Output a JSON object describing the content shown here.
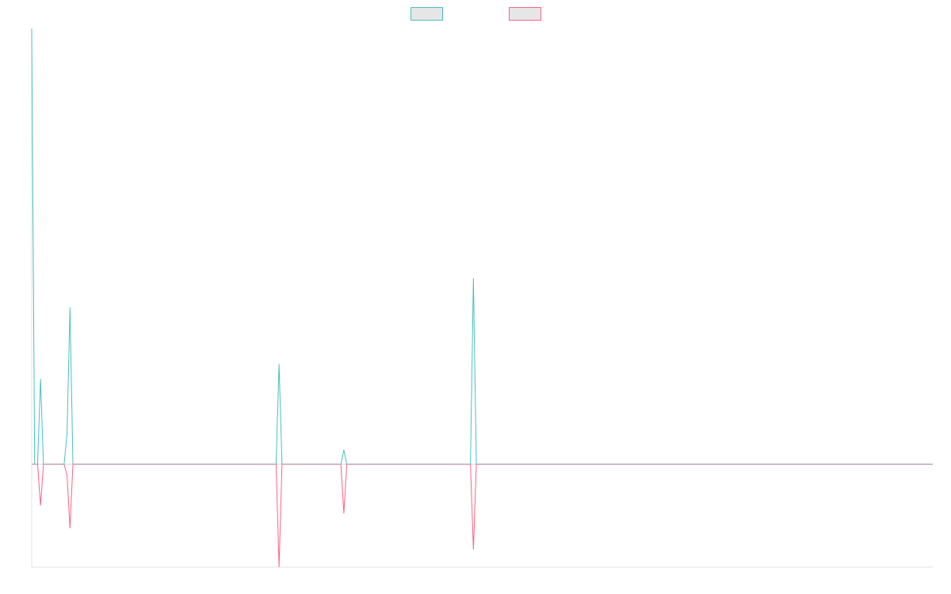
{
  "chart_data": {
    "type": "line",
    "x": [
      0,
      1,
      2,
      3,
      4,
      11,
      12,
      13,
      14,
      83,
      84,
      85,
      105,
      106,
      107,
      149,
      150,
      151,
      306
    ],
    "xlim": [
      0,
      306
    ],
    "ylim": [
      -23.6,
      100
    ],
    "series": [
      {
        "color": "#4bc0c0",
        "values": [
          100,
          0,
          0,
          19.6,
          0,
          0,
          7,
          36,
          0,
          0,
          23,
          0,
          0,
          3.3,
          0,
          0,
          42.7,
          0,
          0
        ]
      },
      {
        "color": "#ff6384",
        "values": [
          0,
          0,
          0,
          -9.5,
          0,
          0,
          -2.5,
          -14.7,
          0,
          0,
          -23.6,
          0,
          0,
          -11.3,
          0,
          0,
          -19.6,
          0,
          0
        ]
      }
    ],
    "legend": "top"
  }
}
